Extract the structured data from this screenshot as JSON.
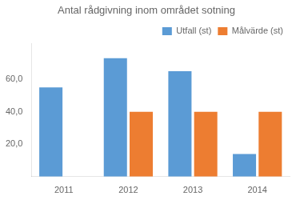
{
  "chart_data": {
    "type": "bar",
    "title": "Antal rådgivning inom området sotning",
    "categories": [
      "2011",
      "2012",
      "2013",
      "2014"
    ],
    "series": [
      {
        "name": "Utfall (st)",
        "color": "#5B9BD5",
        "values": [
          55,
          73,
          65,
          14
        ]
      },
      {
        "name": "Målvärde (st)",
        "color": "#ED7D31",
        "values": [
          null,
          40,
          40,
          40
        ]
      }
    ],
    "ylim": [
      0,
      82
    ],
    "yticks": [
      {
        "value": 20.0,
        "label": "20,0"
      },
      {
        "value": 40.0,
        "label": "40,0"
      },
      {
        "value": 60.0,
        "label": "60,0"
      }
    ],
    "grid": false,
    "legend": "upper right"
  }
}
